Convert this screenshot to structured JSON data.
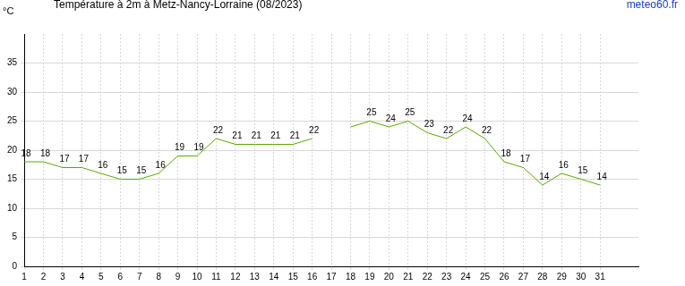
{
  "chart_data": {
    "type": "line",
    "title": "Température à 2m à Metz-Nancy-Lorraine (08/2023)",
    "source": "meteo60.fr",
    "y_label": "°C",
    "x": [
      1,
      2,
      3,
      4,
      5,
      6,
      7,
      8,
      9,
      10,
      11,
      12,
      13,
      14,
      15,
      16,
      17,
      18,
      19,
      20,
      21,
      22,
      23,
      24,
      25,
      26,
      27,
      28,
      29,
      30,
      31
    ],
    "values": [
      18,
      18,
      17,
      17,
      16,
      15,
      15,
      16,
      19,
      19,
      22,
      21,
      21,
      21,
      21,
      22,
      null,
      24,
      25,
      24,
      25,
      23,
      22,
      24,
      22,
      18,
      17,
      14,
      16,
      15,
      14
    ],
    "value_labels": [
      "18",
      "18",
      "17",
      "17",
      "16",
      "15",
      "15",
      "16",
      "19",
      "19",
      "22",
      "21",
      "21",
      "21",
      "21",
      "22",
      null,
      null,
      "25",
      "24",
      "25",
      "23",
      "22",
      "24",
      "22",
      "18",
      "17",
      "14",
      "16",
      "15",
      "14"
    ],
    "color": "#5aa800",
    "xlim": [
      1,
      33
    ],
    "xticks": [
      1,
      2,
      3,
      4,
      5,
      6,
      7,
      8,
      9,
      10,
      11,
      12,
      13,
      14,
      15,
      16,
      17,
      18,
      19,
      20,
      21,
      22,
      23,
      24,
      25,
      26,
      27,
      28,
      29,
      30,
      31
    ],
    "ylim": [
      0,
      40
    ],
    "yticks": [
      0,
      5,
      10,
      15,
      20,
      25,
      30,
      35
    ],
    "grid": true,
    "data_labels": true
  }
}
